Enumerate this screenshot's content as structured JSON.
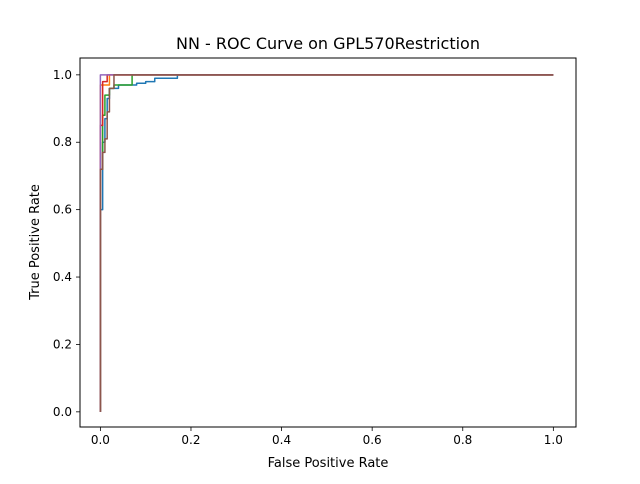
{
  "chart_data": {
    "type": "line",
    "title": "NN - ROC Curve on GPL570Restriction",
    "xlabel": "False Positive Rate",
    "ylabel": "True  Positive Rate",
    "xlim": [
      -0.045,
      1.05
    ],
    "ylim": [
      -0.045,
      1.05
    ],
    "xticks": [
      0.0,
      0.2,
      0.4,
      0.6,
      0.8,
      1.0
    ],
    "yticks": [
      0.0,
      0.2,
      0.4,
      0.6,
      0.8,
      1.0
    ],
    "xtick_labels": [
      "0.0",
      "0.2",
      "0.4",
      "0.6",
      "0.8",
      "1.0"
    ],
    "ytick_labels": [
      "0.0",
      "0.2",
      "0.4",
      "0.6",
      "0.8",
      "1.0"
    ],
    "grid": false,
    "legend": false,
    "series": [
      {
        "color": "#1f77b4",
        "x": [
          0,
          0,
          0.005,
          0.005,
          0.01,
          0.01,
          0.015,
          0.015,
          0.02,
          0.02,
          0.04,
          0.04,
          0.08,
          0.08,
          0.1,
          0.1,
          0.12,
          0.12,
          0.17,
          0.17,
          1.0
        ],
        "y": [
          0,
          0.6,
          0.6,
          0.8,
          0.8,
          0.87,
          0.87,
          0.93,
          0.93,
          0.96,
          0.96,
          0.97,
          0.97,
          0.975,
          0.975,
          0.98,
          0.98,
          0.99,
          0.99,
          1.0,
          1.0
        ]
      },
      {
        "color": "#ff7f0e",
        "x": [
          0,
          0,
          0.02,
          0.02,
          1.0
        ],
        "y": [
          0,
          0.97,
          0.97,
          1.0,
          1.0
        ]
      },
      {
        "color": "#2ca02c",
        "x": [
          0,
          0,
          0.005,
          0.005,
          0.01,
          0.01,
          0.02,
          0.02,
          0.03,
          0.03,
          0.07,
          0.07,
          1.0
        ],
        "y": [
          0,
          0.72,
          0.72,
          0.88,
          0.88,
          0.94,
          0.94,
          0.96,
          0.96,
          0.97,
          0.97,
          1.0,
          1.0
        ]
      },
      {
        "color": "#d62728",
        "x": [
          0,
          0,
          0.005,
          0.005,
          0.015,
          0.015,
          1.0
        ],
        "y": [
          0,
          0.85,
          0.85,
          0.98,
          0.98,
          1.0,
          1.0
        ]
      },
      {
        "color": "#9467bd",
        "x": [
          0,
          0,
          1.0
        ],
        "y": [
          0,
          1.0,
          1.0
        ]
      },
      {
        "color": "#8c564b",
        "x": [
          0,
          0,
          0.005,
          0.005,
          0.01,
          0.01,
          0.015,
          0.015,
          0.02,
          0.02,
          0.03,
          0.03,
          1.0
        ],
        "y": [
          0,
          0.72,
          0.72,
          0.77,
          0.77,
          0.81,
          0.81,
          0.89,
          0.89,
          0.96,
          0.96,
          1.0,
          1.0
        ]
      }
    ]
  }
}
